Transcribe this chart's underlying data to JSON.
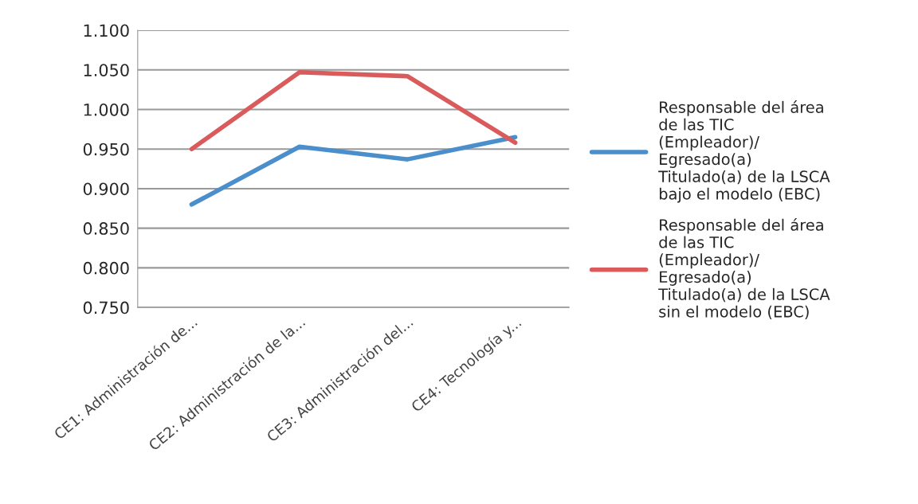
{
  "chart_data": {
    "type": "line",
    "categories": [
      "CE1: Administración de...",
      "CE2: Administración de la...",
      "CE3: Administración del...",
      "CE4: Tecnología y..."
    ],
    "series": [
      {
        "name": "Responsable del área\nde las TIC\n(Empleador)/\nEgresado(a)\nTitulado(a) de la LSCA\nbajo el modelo (EBC)",
        "color": "#4a8fcc",
        "values": [
          0.88,
          0.953,
          0.937,
          0.965
        ]
      },
      {
        "name": "Responsable del área\nde las TIC\n(Empleador)/\nEgresado(a)\nTitulado(a) de la LSCA\nsin el modelo (EBC)",
        "color": "#d95b5b",
        "values": [
          0.95,
          1.047,
          1.042,
          0.958
        ]
      }
    ],
    "ylim": [
      0.75,
      1.1
    ],
    "yticks": [
      {
        "value": 0.75,
        "label": "0.750"
      },
      {
        "value": 0.8,
        "label": "0.800"
      },
      {
        "value": 0.85,
        "label": "0.850"
      },
      {
        "value": 0.9,
        "label": "0.900"
      },
      {
        "value": 0.95,
        "label": "0.950"
      },
      {
        "value": 1.0,
        "label": "1.000"
      },
      {
        "value": 1.05,
        "label": "1.050"
      },
      {
        "value": 1.1,
        "label": "1.100"
      }
    ],
    "grid": "y",
    "legend": "right",
    "marker": "none",
    "line_style": "solid"
  }
}
